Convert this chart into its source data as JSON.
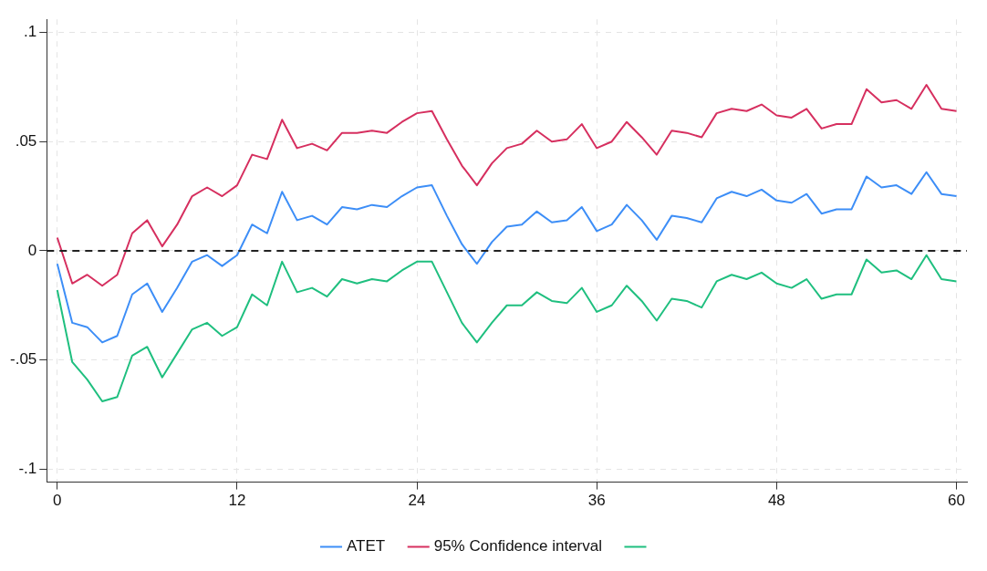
{
  "chart_data": {
    "type": "line",
    "x": [
      0,
      1,
      2,
      3,
      4,
      5,
      6,
      7,
      8,
      9,
      10,
      11,
      12,
      13,
      14,
      15,
      16,
      17,
      18,
      19,
      20,
      21,
      22,
      23,
      24,
      25,
      26,
      27,
      28,
      29,
      30,
      31,
      32,
      33,
      34,
      35,
      36,
      37,
      38,
      39,
      40,
      41,
      42,
      43,
      44,
      45,
      46,
      47,
      48,
      49,
      50,
      51,
      52,
      53,
      54,
      55,
      56,
      57,
      58,
      59,
      60
    ],
    "series": [
      {
        "name": "ATET",
        "color": "#3d8ef7",
        "values": [
          -0.006,
          -0.033,
          -0.035,
          -0.042,
          -0.039,
          -0.02,
          -0.015,
          -0.028,
          -0.017,
          -0.005,
          -0.002,
          -0.007,
          -0.002,
          0.012,
          0.008,
          0.027,
          0.014,
          0.016,
          0.012,
          0.02,
          0.019,
          0.021,
          0.02,
          0.025,
          0.029,
          0.03,
          0.016,
          0.003,
          -0.006,
          0.004,
          0.011,
          0.012,
          0.018,
          0.013,
          0.014,
          0.02,
          0.009,
          0.012,
          0.021,
          0.014,
          0.005,
          0.016,
          0.015,
          0.013,
          0.024,
          0.027,
          0.025,
          0.028,
          0.023,
          0.022,
          0.026,
          0.017,
          0.019,
          0.019,
          0.034,
          0.029,
          0.03,
          0.026,
          0.036,
          0.026,
          0.025
        ]
      },
      {
        "name": "95% Confidence interval",
        "color": "#d62f5f",
        "values": [
          0.006,
          -0.015,
          -0.011,
          -0.016,
          -0.011,
          0.008,
          0.014,
          0.002,
          0.012,
          0.025,
          0.029,
          0.025,
          0.03,
          0.044,
          0.042,
          0.06,
          0.047,
          0.049,
          0.046,
          0.054,
          0.054,
          0.055,
          0.054,
          0.059,
          0.063,
          0.064,
          0.051,
          0.039,
          0.03,
          0.04,
          0.047,
          0.049,
          0.055,
          0.05,
          0.051,
          0.058,
          0.047,
          0.05,
          0.059,
          0.052,
          0.044,
          0.055,
          0.054,
          0.052,
          0.063,
          0.065,
          0.064,
          0.067,
          0.062,
          0.061,
          0.065,
          0.056,
          0.058,
          0.058,
          0.074,
          0.068,
          0.069,
          0.065,
          0.076,
          0.065,
          0.064
        ]
      },
      {
        "color": "#1fbf7f",
        "values": [
          -0.018,
          -0.051,
          -0.059,
          -0.069,
          -0.067,
          -0.048,
          -0.044,
          -0.058,
          -0.047,
          -0.036,
          -0.033,
          -0.039,
          -0.035,
          -0.02,
          -0.025,
          -0.005,
          -0.019,
          -0.017,
          -0.021,
          -0.013,
          -0.015,
          -0.013,
          -0.014,
          -0.009,
          -0.005,
          -0.005,
          -0.019,
          -0.033,
          -0.042,
          -0.033,
          -0.025,
          -0.025,
          -0.019,
          -0.023,
          -0.024,
          -0.017,
          -0.028,
          -0.025,
          -0.016,
          -0.023,
          -0.032,
          -0.022,
          -0.023,
          -0.026,
          -0.014,
          -0.011,
          -0.013,
          -0.01,
          -0.015,
          -0.017,
          -0.013,
          -0.022,
          -0.02,
          -0.02,
          -0.004,
          -0.01,
          -0.009,
          -0.013,
          -0.002,
          -0.013,
          -0.014
        ]
      }
    ],
    "xlim": [
      -0.7,
      60.7
    ],
    "xticks": [
      0,
      12,
      24,
      36,
      48,
      60
    ],
    "ylim": [
      -0.106,
      0.106
    ],
    "yticks": [
      {
        "value": -0.1,
        "label": "-.1"
      },
      {
        "value": -0.05,
        "label": "-.05"
      },
      0,
      {
        "value": 0.05,
        "label": ".05"
      },
      {
        "value": 0.1,
        "label": ".1"
      }
    ],
    "ref_lines": [
      {
        "axis": "y",
        "value": 0,
        "color": "#222222",
        "line_style": "dashed"
      }
    ],
    "grid": true,
    "legend": "bottom",
    "marker": "none",
    "line_style": "solid"
  }
}
